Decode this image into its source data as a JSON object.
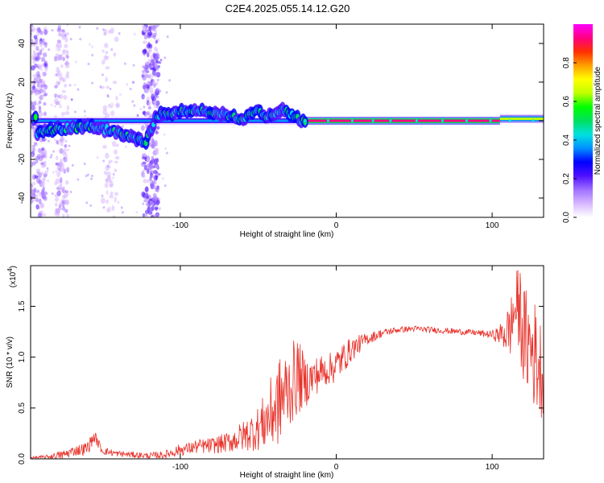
{
  "title": "C2E4.2025.055.14.12.G20",
  "chart_data": [
    {
      "type": "heatmap",
      "xlabel": "Height of straight line (km)",
      "ylabel": "Frequency (Hz)",
      "xlim": [
        -196,
        133
      ],
      "ylim": [
        -50,
        50
      ],
      "xticks": [
        -100,
        0,
        100
      ],
      "yticks": [
        40,
        20,
        0,
        -20,
        -40
      ],
      "colorbar": {
        "label": "Normalized spectral amplitude",
        "range": [
          0.0,
          1.0
        ],
        "ticks": [
          "0.0",
          "0.2",
          "0.4",
          "0.6",
          "0.8"
        ],
        "colors": [
          "#ffffff",
          "#d8b8ff",
          "#a070ff",
          "#5010ff",
          "#0000ff",
          "#0090ff",
          "#00e0e0",
          "#00e060",
          "#00ff00",
          "#c0ff00",
          "#ffff00",
          "#ffa000",
          "#ff3000",
          "#ff0080",
          "#ff00ff"
        ]
      },
      "ridge": [
        {
          "x": -192,
          "y": -6
        },
        {
          "x": -175,
          "y": -4
        },
        {
          "x": -160,
          "y": -3
        },
        {
          "x": -145,
          "y": -5
        },
        {
          "x": -130,
          "y": -9
        },
        {
          "x": -122,
          "y": -11
        },
        {
          "x": -115,
          "y": 3
        },
        {
          "x": -100,
          "y": 5
        },
        {
          "x": -85,
          "y": 5
        },
        {
          "x": -72,
          "y": 3
        },
        {
          "x": -60,
          "y": 1
        },
        {
          "x": -52,
          "y": 6
        },
        {
          "x": -45,
          "y": 2
        },
        {
          "x": -35,
          "y": 6
        },
        {
          "x": -25,
          "y": 1
        },
        {
          "x": -20,
          "y": 0
        },
        {
          "x": 0,
          "y": 0
        },
        {
          "x": 50,
          "y": 0
        },
        {
          "x": 100,
          "y": 0
        },
        {
          "x": 110,
          "y": 2
        },
        {
          "x": 133,
          "y": 1
        }
      ],
      "tones": [
        {
          "x0": -196,
          "x1": -20,
          "y": 0,
          "amp": 0.35
        },
        {
          "x0": -20,
          "x1": 105,
          "y": 0,
          "amp": 0.9
        },
        {
          "x0": 105,
          "x1": 133,
          "y": 1,
          "amp": 0.65
        }
      ],
      "vertical_bands": [
        {
          "x0": -196,
          "x1": -186,
          "amp": 0.12
        },
        {
          "x0": -180,
          "x1": -172,
          "amp": 0.08
        },
        {
          "x0": -124,
          "x1": -114,
          "amp": 0.15
        },
        {
          "x0": -150,
          "x1": -140,
          "amp": 0.05
        }
      ]
    },
    {
      "type": "line",
      "xlabel": "Height of straight line (km)",
      "ylabel": "SNR (10 * v/v)",
      "y_multiplier": "(x10",
      "y_exponent": "4",
      "y_multiplier_close": ")",
      "xlim": [
        -196,
        133
      ],
      "ylim": [
        0,
        1.9
      ],
      "xticks": [
        -100,
        0,
        100
      ],
      "yticks": [
        0.0,
        0.5,
        1.0,
        1.5
      ],
      "series": [
        {
          "name": "SNR",
          "color": "#e8322a",
          "x": [
            -196,
            -185,
            -175,
            -168,
            -160,
            -155,
            -150,
            -140,
            -130,
            -120,
            -110,
            -100,
            -95,
            -90,
            -80,
            -70,
            -60,
            -50,
            -45,
            -40,
            -35,
            -30,
            -25,
            -20,
            -15,
            -10,
            -5,
            0,
            5,
            10,
            20,
            30,
            40,
            50,
            60,
            70,
            80,
            90,
            100,
            105,
            110,
            112,
            115,
            118,
            120,
            125,
            128,
            131,
            133
          ],
          "y": [
            0.01,
            0.02,
            0.04,
            0.08,
            0.1,
            0.22,
            0.08,
            0.05,
            0.04,
            0.03,
            0.04,
            0.09,
            0.1,
            0.12,
            0.13,
            0.16,
            0.22,
            0.3,
            0.38,
            0.48,
            0.6,
            0.7,
            0.82,
            0.75,
            0.8,
            0.85,
            0.88,
            0.92,
            1.0,
            1.08,
            1.18,
            1.24,
            1.27,
            1.28,
            1.27,
            1.26,
            1.25,
            1.24,
            1.22,
            1.22,
            1.25,
            1.3,
            1.5,
            1.45,
            1.2,
            1.1,
            1.0,
            0.9,
            0.85
          ],
          "noise": [
            0.01,
            0.02,
            0.05,
            0.05,
            0.07,
            0.06,
            0.04,
            0.03,
            0.03,
            0.03,
            0.04,
            0.06,
            0.06,
            0.07,
            0.08,
            0.1,
            0.15,
            0.22,
            0.3,
            0.4,
            0.45,
            0.4,
            0.4,
            0.25,
            0.2,
            0.18,
            0.15,
            0.18,
            0.15,
            0.12,
            0.06,
            0.04,
            0.03,
            0.03,
            0.03,
            0.03,
            0.03,
            0.03,
            0.04,
            0.1,
            0.25,
            0.3,
            0.35,
            0.45,
            0.5,
            0.55,
            0.55,
            0.5,
            0.45
          ]
        }
      ]
    }
  ]
}
